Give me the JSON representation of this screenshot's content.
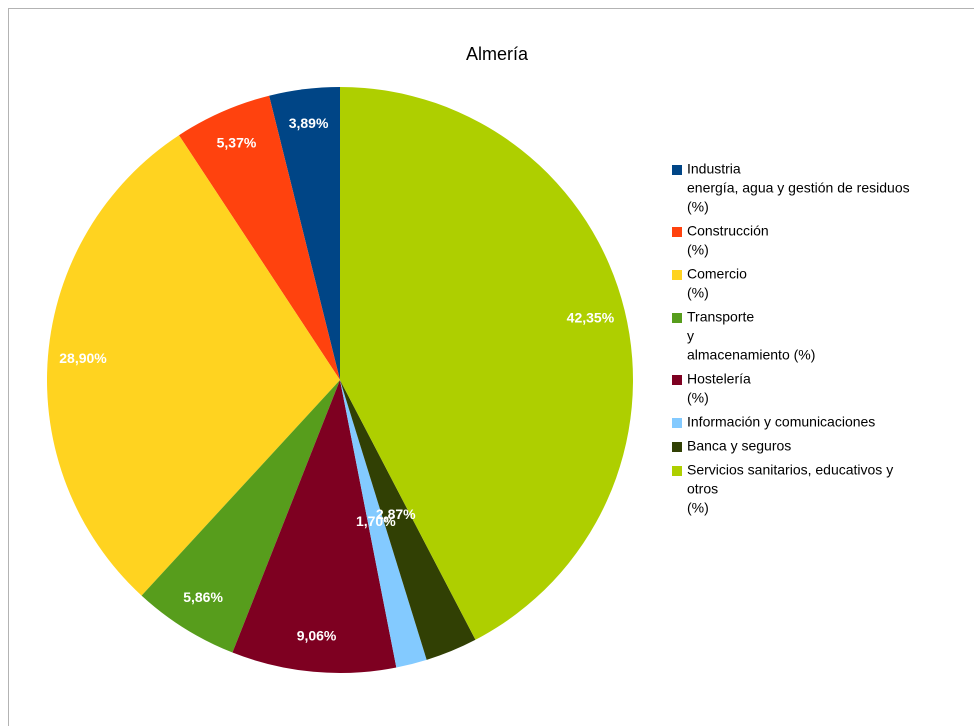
{
  "chart_data": {
    "type": "pie",
    "title": "Almería",
    "categories": [
      [
        "Industria",
        "energía, agua y gestión de residuos",
        "(%)"
      ],
      [
        "Construcción",
        "(%)"
      ],
      [
        "Comercio",
        "(%)"
      ],
      [
        "Transporte",
        "y",
        "almacenamiento (%)"
      ],
      [
        "Hostelería",
        "(%)"
      ],
      [
        "Información y comunicaciones"
      ],
      [
        "Banca y seguros"
      ],
      [
        "Servicios sanitarios, educativos y",
        "otros",
        "(%)"
      ]
    ],
    "values": [
      3.89,
      5.37,
      28.9,
      5.86,
      9.06,
      1.7,
      2.87,
      42.35
    ],
    "value_labels": [
      "3,89%",
      "5,37%",
      "28,90%",
      "5,86%",
      "9,06%",
      "1,70%",
      "2,87%",
      "42,35%"
    ],
    "colors": [
      "#004586",
      "#ff420e",
      "#ffd320",
      "#579d1c",
      "#7e0021",
      "#83caff",
      "#314004",
      "#aecf00"
    ],
    "legend": "right"
  }
}
